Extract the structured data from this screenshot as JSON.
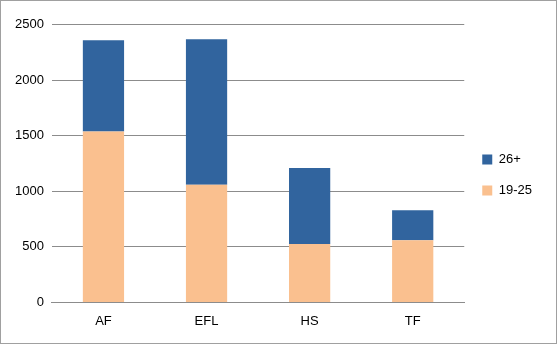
{
  "chart_data": {
    "type": "bar",
    "stacked": true,
    "grid": true,
    "legend": "right",
    "categories": [
      "AF",
      "EFL",
      "HS",
      "TF"
    ],
    "series": [
      {
        "name": "19-25",
        "color": "#fac08f",
        "values": [
          1540,
          1060,
          525,
          560
        ]
      },
      {
        "name": "26+",
        "color": "#31649e",
        "values": [
          820,
          1310,
          685,
          270
        ]
      }
    ],
    "ylim": [
      0,
      2500
    ],
    "yticks": [
      0,
      500,
      1000,
      1500,
      2000,
      2500
    ]
  }
}
